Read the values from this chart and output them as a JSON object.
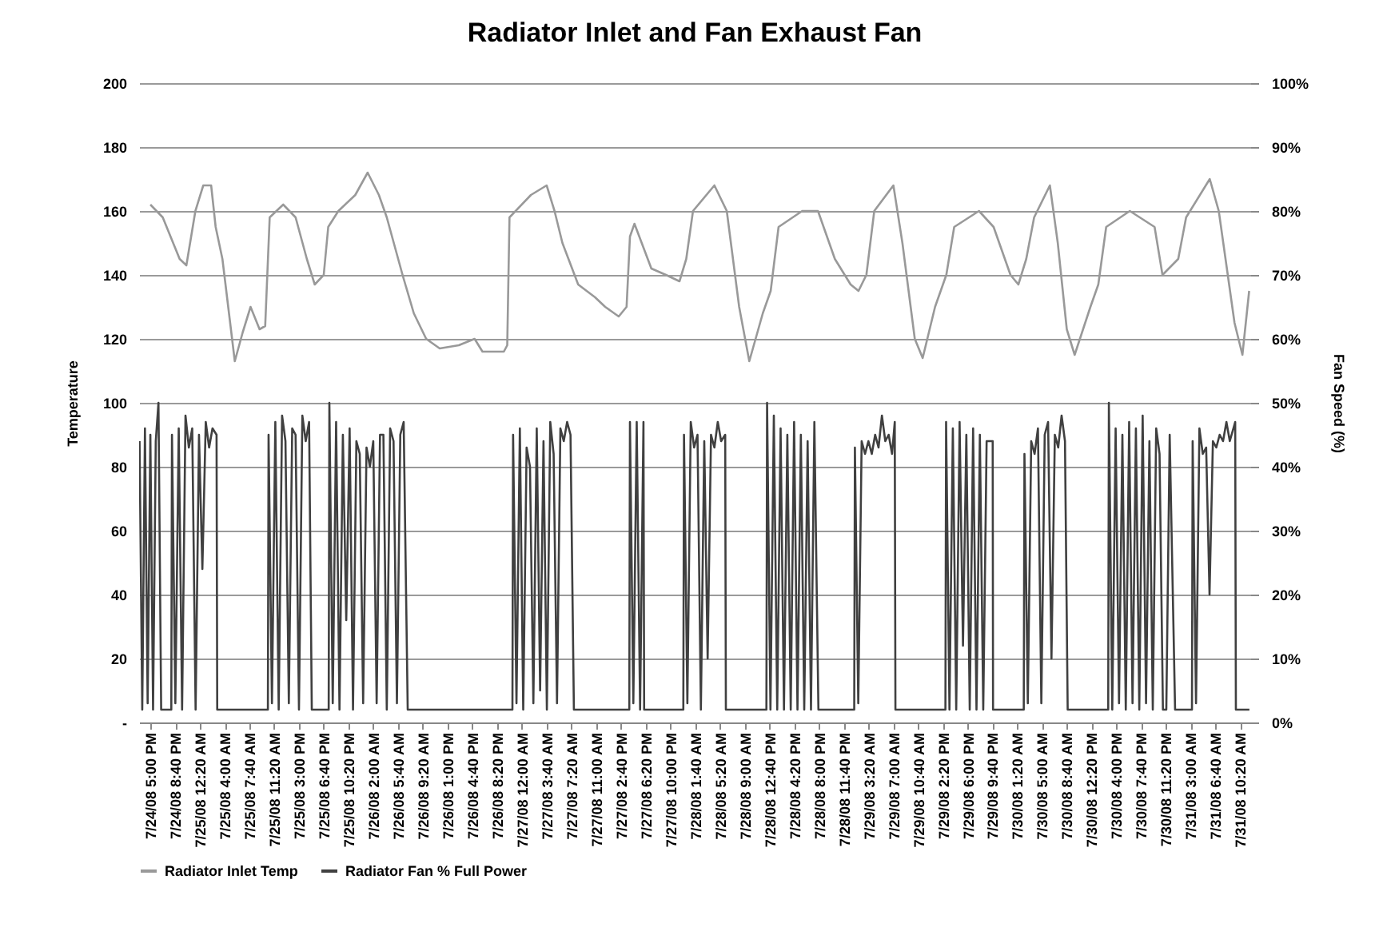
{
  "chart_data": {
    "type": "line",
    "title": "Radiator Inlet and Fan Exhaust Fan",
    "ylabel": "Temperature",
    "y2label": "Fan Speed (%)",
    "xlim": [
      "--07-24T15:20",
      "--07-31T11:50"
    ],
    "xticks": [
      {
        "value": "--07-24T17:00",
        "label": "7/24/08 5:00 PM"
      },
      {
        "value": "--07-24T20:40",
        "label": "7/24/08 8:40 PM"
      },
      {
        "value": "--07-25T00:20",
        "label": "7/25/08 12:20 AM"
      },
      {
        "value": "--07-25T04:00",
        "label": "7/25/08 4:00 AM"
      },
      {
        "value": "--07-25T07:40",
        "label": "7/25/08 7:40 AM"
      },
      {
        "value": "--07-25T11:20",
        "label": "7/25/08 11:20 AM"
      },
      {
        "value": "--07-25T15:00",
        "label": "7/25/08 3:00 PM"
      },
      {
        "value": "--07-25T18:40",
        "label": "7/25/08 6:40 PM"
      },
      {
        "value": "--07-25T22:20",
        "label": "7/25/08 10:20 PM"
      },
      {
        "value": "--07-26T02:00",
        "label": "7/26/08 2:00 AM"
      },
      {
        "value": "--07-26T05:40",
        "label": "7/26/08 5:40 AM"
      },
      {
        "value": "--07-26T09:20",
        "label": "7/26/08 9:20 AM"
      },
      {
        "value": "--07-26T13:00",
        "label": "7/26/08 1:00 PM"
      },
      {
        "value": "--07-26T16:40",
        "label": "7/26/08 4:40 PM"
      },
      {
        "value": "--07-26T20:20",
        "label": "7/26/08 8:20 PM"
      },
      {
        "value": "--07-27T00:00",
        "label": "7/27/08 12:00 AM"
      },
      {
        "value": "--07-27T03:40",
        "label": "7/27/08 3:40 AM"
      },
      {
        "value": "--07-27T07:20",
        "label": "7/27/08 7:20 AM"
      },
      {
        "value": "--07-27T11:00",
        "label": "7/27/08 11:00 AM"
      },
      {
        "value": "--07-27T14:40",
        "label": "7/27/08 2:40 PM"
      },
      {
        "value": "--07-27T18:20",
        "label": "7/27/08 6:20 PM"
      },
      {
        "value": "--07-27T22:00",
        "label": "7/27/08 10:00 PM"
      },
      {
        "value": "--07-28T01:40",
        "label": "7/28/08 1:40 AM"
      },
      {
        "value": "--07-28T05:20",
        "label": "7/28/08 5:20 AM"
      },
      {
        "value": "--07-28T09:00",
        "label": "7/28/08 9:00 AM"
      },
      {
        "value": "--07-28T12:40",
        "label": "7/28/08 12:40 PM"
      },
      {
        "value": "--07-28T16:20",
        "label": "7/28/08 4:20 PM"
      },
      {
        "value": "--07-28T20:00",
        "label": "7/28/08 8:00 PM"
      },
      {
        "value": "--07-28T23:40",
        "label": "7/28/08 11:40 PM"
      },
      {
        "value": "--07-29T03:20",
        "label": "7/29/08 3:20 AM"
      },
      {
        "value": "--07-29T07:00",
        "label": "7/29/08 7:00 AM"
      },
      {
        "value": "--07-29T10:40",
        "label": "7/29/08 10:40 AM"
      },
      {
        "value": "--07-29T14:20",
        "label": "7/29/08 2:20 PM"
      },
      {
        "value": "--07-29T18:00",
        "label": "7/29/08 6:00 PM"
      },
      {
        "value": "--07-29T21:40",
        "label": "7/29/08 9:40 PM"
      },
      {
        "value": "--07-30T01:20",
        "label": "7/30/08 1:20 AM"
      },
      {
        "value": "--07-30T05:00",
        "label": "7/30/08 5:00 AM"
      },
      {
        "value": "--07-30T08:40",
        "label": "7/30/08 8:40 AM"
      },
      {
        "value": "--07-30T12:20",
        "label": "7/30/08 12:20 PM"
      },
      {
        "value": "--07-30T16:00",
        "label": "7/30/08 4:00 PM"
      },
      {
        "value": "--07-30T19:40",
        "label": "7/30/08 7:40 PM"
      },
      {
        "value": "--07-30T23:20",
        "label": "7/30/08 11:20 PM"
      },
      {
        "value": "--07-31T03:00",
        "label": "7/31/08 3:00 AM"
      },
      {
        "value": "--07-31T06:40",
        "label": "7/31/08 6:40 AM"
      },
      {
        "value": "--07-31T10:20",
        "label": "7/31/08 10:20 AM"
      }
    ],
    "ylim": [
      0,
      200
    ],
    "yticks": [
      {
        "value": 0,
        "label": "-"
      },
      20,
      40,
      60,
      80,
      100,
      120,
      140,
      160,
      180,
      200
    ],
    "y2lim": [
      0,
      100
    ],
    "y2ticks": [
      {
        "value": 0,
        "label": "0%"
      },
      {
        "value": 10,
        "label": "10%"
      },
      {
        "value": 20,
        "label": "20%"
      },
      {
        "value": 30,
        "label": "30%"
      },
      {
        "value": 40,
        "label": "40%"
      },
      {
        "value": 50,
        "label": "50%"
      },
      {
        "value": 60,
        "label": "60%"
      },
      {
        "value": 70,
        "label": "70%"
      },
      {
        "value": 80,
        "label": "80%"
      },
      {
        "value": 90,
        "label": "90%"
      },
      {
        "value": 100,
        "label": "100%"
      }
    ],
    "grid": "y",
    "legend": "bottom",
    "marker": "none",
    "line_style": "solid",
    "series": [
      {
        "name": "Radiator Inlet Temp",
        "color": "#999999",
        "x": [
          "--07-24T17:00",
          "--07-24T18:50",
          "--07-24T21:20",
          "--07-24T22:20",
          "--07-24T23:40",
          "--07-25T00:50",
          "--07-25T02:00",
          "--07-25T02:40",
          "--07-25T03:40",
          "--07-25T05:30",
          "--07-25T06:40",
          "--07-25T07:50",
          "--07-25T09:10",
          "--07-25T10:00",
          "--07-25T10:40",
          "--07-25T12:40",
          "--07-25T14:30",
          "--07-25T16:10",
          "--07-25T17:20",
          "--07-25T18:40",
          "--07-25T19:20",
          "--07-25T20:50",
          "--07-25T23:20",
          "--07-26T01:10",
          "--07-26T02:50",
          "--07-26T04:00",
          "--07-26T06:20",
          "--07-26T08:00",
          "--07-26T09:50",
          "--07-26T11:50",
          "--07-26T14:40",
          "--07-26T17:00",
          "--07-26T18:10",
          "--07-26T21:20",
          "--07-26T21:50",
          "--07-26T22:10",
          "--07-27T01:20",
          "--07-27T03:40",
          "--07-27T04:50",
          "--07-27T06:00",
          "--07-27T08:20",
          "--07-27T10:50",
          "--07-27T12:20",
          "--07-27T14:20",
          "--07-27T15:30",
          "--07-27T16:00",
          "--07-27T16:40",
          "--07-27T19:10",
          "--07-27T21:20",
          "--07-27T23:20",
          "--07-28T00:20",
          "--07-28T01:20",
          "--07-28T04:30",
          "--07-28T06:20",
          "--07-28T08:10",
          "--07-28T09:40",
          "--07-28T11:40",
          "--07-28T12:50",
          "--07-28T14:00",
          "--07-28T17:30",
          "--07-28T19:50",
          "--07-28T22:20",
          "--07-29T00:40",
          "--07-29T01:50",
          "--07-29T03:00",
          "--07-29T04:10",
          "--07-29T07:00",
          "--07-29T08:20",
          "--07-29T10:10",
          "--07-29T11:20",
          "--07-29T13:10",
          "--07-29T14:50",
          "--07-29T16:00",
          "--07-29T19:40",
          "--07-29T21:50",
          "--07-30T00:20",
          "--07-30T01:30",
          "--07-30T02:40",
          "--07-30T03:50",
          "--07-30T06:10",
          "--07-30T07:20",
          "--07-30T08:40",
          "--07-30T09:50",
          "--07-30T12:10",
          "--07-30T13:20",
          "--07-30T14:30",
          "--07-30T18:00",
          "--07-30T21:40",
          "--07-30T22:50",
          "--07-31T01:10",
          "--07-31T02:20",
          "--07-31T05:50",
          "--07-31T07:10",
          "--07-31T09:30",
          "--07-31T10:40",
          "--07-31T11:40"
        ],
        "values": [
          162,
          158,
          145,
          143,
          160,
          168,
          168,
          155,
          145,
          113,
          122,
          130,
          123,
          124,
          158,
          162,
          158,
          145,
          137,
          140,
          155,
          160,
          165,
          172,
          165,
          158,
          140,
          128,
          120,
          117,
          118,
          120,
          116,
          116,
          118,
          158,
          165,
          168,
          160,
          150,
          137,
          133,
          130,
          127,
          130,
          152,
          156,
          142,
          140,
          138,
          145,
          160,
          168,
          160,
          130,
          113,
          128,
          135,
          155,
          160,
          160,
          145,
          137,
          135,
          140,
          160,
          168,
          150,
          120,
          114,
          130,
          140,
          155,
          160,
          155,
          140,
          137,
          145,
          158,
          168,
          150,
          123,
          115,
          130,
          137,
          155,
          160,
          155,
          140,
          145,
          158,
          170,
          160,
          125,
          115,
          135
        ]
      },
      {
        "name": "Radiator Fan % Full Power",
        "color": "#404040",
        "axis": "y2",
        "x": [
          "--07-24T15:24",
          "--07-24T15:48",
          "--07-24T16:12",
          "--07-24T16:36",
          "--07-24T17:00",
          "--07-24T17:24",
          "--07-24T17:48",
          "--07-24T18:12",
          "--07-24T18:36",
          "--07-24T19:24",
          "--07-24T20:06",
          "--07-24T20:12",
          "--07-24T20:42",
          "--07-24T21:12",
          "--07-24T21:42",
          "--07-24T22:12",
          "--07-24T22:42",
          "--07-24T23:12",
          "--07-24T23:42",
          "--07-25T00:12",
          "--07-25T00:42",
          "--07-25T01:12",
          "--07-25T01:42",
          "--07-25T02:12",
          "--07-25T02:48",
          "--07-25T02:54",
          "--07-25T05:00",
          "--07-25T08:00",
          "--07-25T10:24",
          "--07-25T10:30",
          "--07-25T11:00",
          "--07-25T11:30",
          "--07-25T12:00",
          "--07-25T12:30",
          "--07-25T13:00",
          "--07-25T13:30",
          "--07-25T14:00",
          "--07-25T14:30",
          "--07-25T15:00",
          "--07-25T15:30",
          "--07-25T16:00",
          "--07-25T16:30",
          "--07-25T16:54",
          "--07-25T18:00",
          "--07-25T19:24",
          "--07-25T19:30",
          "--07-25T20:00",
          "--07-25T20:30",
          "--07-25T21:00",
          "--07-25T21:30",
          "--07-25T22:00",
          "--07-25T22:30",
          "--07-25T23:00",
          "--07-25T23:30",
          "--07-26T00:00",
          "--07-26T00:30",
          "--07-26T01:00",
          "--07-26T01:30",
          "--07-26T02:00",
          "--07-26T02:30",
          "--07-26T03:00",
          "--07-26T03:30",
          "--07-26T04:00",
          "--07-26T04:30",
          "--07-26T05:00",
          "--07-26T05:30",
          "--07-26T06:00",
          "--07-26T06:30",
          "--07-26T07:06",
          "--07-26T11:00",
          "--07-26T15:00",
          "--07-26T19:00",
          "--07-26T22:36",
          "--07-26T22:42",
          "--07-26T23:12",
          "--07-26T23:42",
          "--07-27T00:12",
          "--07-27T00:42",
          "--07-27T01:12",
          "--07-27T01:42",
          "--07-27T02:12",
          "--07-27T02:42",
          "--07-27T03:12",
          "--07-27T03:42",
          "--07-27T04:12",
          "--07-27T04:42",
          "--07-27T05:12",
          "--07-27T05:42",
          "--07-27T06:12",
          "--07-27T06:42",
          "--07-27T07:12",
          "--07-27T07:42",
          "--07-27T11:00",
          "--07-27T15:54",
          "--07-27T16:00",
          "--07-27T16:30",
          "--07-27T17:00",
          "--07-27T17:30",
          "--07-27T18:00",
          "--07-27T18:06",
          "--07-27T21:00",
          "--07-27T23:54",
          "--07-28T00:00",
          "--07-28T00:30",
          "--07-28T01:00",
          "--07-28T01:30",
          "--07-28T02:00",
          "--07-28T02:30",
          "--07-28T03:00",
          "--07-28T03:30",
          "--07-28T04:00",
          "--07-28T04:30",
          "--07-28T05:00",
          "--07-28T05:30",
          "--07-28T06:06",
          "--07-28T06:12",
          "--07-28T09:00",
          "--07-28T12:12",
          "--07-28T12:18",
          "--07-28T12:48",
          "--07-28T13:18",
          "--07-28T13:48",
          "--07-28T14:18",
          "--07-28T14:48",
          "--07-28T15:18",
          "--07-28T15:48",
          "--07-28T16:18",
          "--07-28T16:48",
          "--07-28T17:18",
          "--07-28T17:48",
          "--07-28T18:18",
          "--07-28T18:48",
          "--07-28T19:18",
          "--07-28T19:54",
          "--07-28T22:00",
          "--07-29T01:12",
          "--07-29T01:18",
          "--07-29T01:48",
          "--07-29T02:18",
          "--07-29T02:48",
          "--07-29T03:18",
          "--07-29T03:48",
          "--07-29T04:18",
          "--07-29T04:48",
          "--07-29T05:18",
          "--07-29T05:48",
          "--07-29T06:18",
          "--07-29T06:48",
          "--07-29T07:12",
          "--07-29T07:18",
          "--07-29T10:00",
          "--07-29T14:42",
          "--07-29T14:48",
          "--07-29T15:18",
          "--07-29T15:48",
          "--07-29T16:18",
          "--07-29T16:48",
          "--07-29T17:18",
          "--07-29T17:48",
          "--07-29T18:18",
          "--07-29T18:48",
          "--07-29T19:18",
          "--07-29T19:48",
          "--07-29T20:18",
          "--07-29T20:48",
          "--07-29T21:42",
          "--07-29T21:45",
          "--07-30T00:00",
          "--07-30T02:18",
          "--07-30T02:24",
          "--07-30T02:54",
          "--07-30T03:24",
          "--07-30T03:54",
          "--07-30T04:24",
          "--07-30T04:54",
          "--07-30T05:24",
          "--07-30T05:54",
          "--07-30T06:24",
          "--07-30T06:54",
          "--07-30T07:24",
          "--07-30T07:54",
          "--07-30T08:24",
          "--07-30T08:48",
          "--07-30T11:00",
          "--07-30T14:48",
          "--07-30T14:54",
          "--07-30T15:24",
          "--07-30T15:54",
          "--07-30T16:24",
          "--07-30T16:54",
          "--07-30T17:24",
          "--07-30T17:54",
          "--07-30T18:24",
          "--07-30T18:54",
          "--07-30T19:24",
          "--07-30T19:54",
          "--07-30T20:24",
          "--07-30T20:54",
          "--07-30T21:24",
          "--07-30T21:54",
          "--07-30T22:24",
          "--07-30T22:54",
          "--07-30T23:24",
          "--07-30T23:54",
          "--07-31T00:42",
          "--07-31T02:00",
          "--07-31T03:12",
          "--07-31T03:18",
          "--07-31T03:48",
          "--07-31T04:18",
          "--07-31T04:48",
          "--07-31T05:18",
          "--07-31T05:48",
          "--07-31T06:18",
          "--07-31T06:48",
          "--07-31T07:18",
          "--07-31T07:48",
          "--07-31T08:18",
          "--07-31T08:48",
          "--07-31T09:36",
          "--07-31T09:42",
          "--07-31T11:42"
        ],
        "values": [
          44,
          2,
          46,
          3,
          45,
          2,
          44,
          50,
          2,
          2,
          2,
          45,
          3,
          46,
          2,
          48,
          43,
          46,
          2,
          45,
          24,
          47,
          43,
          46,
          45,
          2,
          2,
          2,
          2,
          45,
          3,
          47,
          2,
          48,
          44,
          3,
          46,
          45,
          2,
          48,
          44,
          47,
          2,
          2,
          2,
          50,
          3,
          47,
          2,
          45,
          16,
          46,
          2,
          44,
          42,
          3,
          43,
          40,
          44,
          3,
          45,
          45,
          2,
          46,
          44,
          3,
          45,
          47,
          2,
          2,
          2,
          2,
          2,
          45,
          3,
          46,
          2,
          43,
          40,
          3,
          46,
          5,
          44,
          2,
          47,
          42,
          3,
          46,
          44,
          47,
          45,
          2,
          2,
          2,
          47,
          3,
          47,
          2,
          47,
          2,
          2,
          2,
          45,
          3,
          47,
          43,
          45,
          2,
          44,
          10,
          45,
          43,
          47,
          44,
          45,
          2,
          2,
          2,
          50,
          2,
          48,
          2,
          46,
          2,
          45,
          2,
          47,
          2,
          45,
          2,
          44,
          2,
          47,
          2,
          2,
          2,
          43,
          3,
          44,
          42,
          44,
          42,
          45,
          43,
          48,
          44,
          45,
          42,
          47,
          2,
          2,
          2,
          47,
          2,
          46,
          2,
          47,
          12,
          45,
          2,
          46,
          2,
          45,
          2,
          44,
          44,
          2,
          2,
          2,
          42,
          3,
          44,
          42,
          46,
          3,
          45,
          47,
          10,
          45,
          43,
          48,
          44,
          2,
          2,
          2,
          50,
          2,
          46,
          3,
          45,
          2,
          47,
          3,
          46,
          2,
          48,
          3,
          44,
          2,
          46,
          42,
          2,
          2,
          45,
          2,
          2,
          2,
          44,
          3,
          46,
          42,
          43,
          20,
          44,
          43,
          45,
          44,
          47,
          44,
          47,
          2,
          2
        ]
      }
    ]
  }
}
